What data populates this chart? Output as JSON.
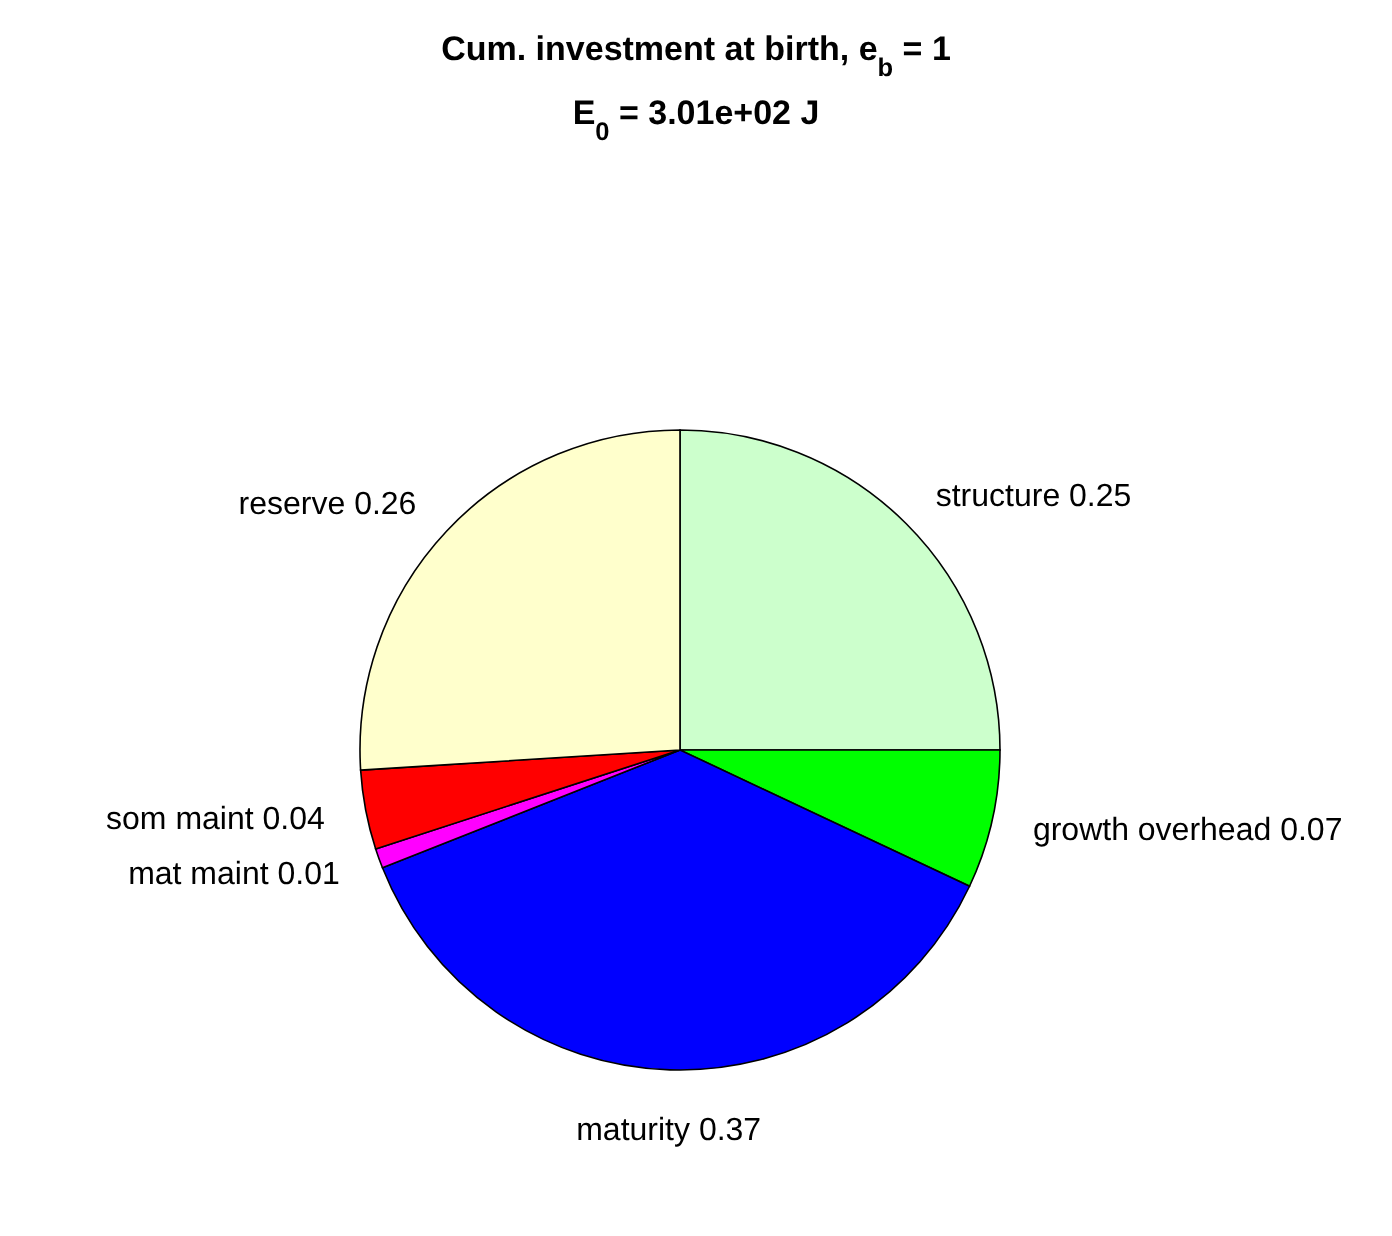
{
  "chart_data": {
    "type": "pie",
    "title": "Cum. investment at birth, e$_{b}$ = 1",
    "subtitle": "E$_{0}$ = 3.01e+02 J",
    "categories": [
      "structure 0.25",
      "growth overhead 0.07",
      "maturity 0.37",
      "mat maint 0.01",
      "som maint 0.04",
      "reserve 0.26"
    ],
    "values": [
      0.25,
      0.07,
      0.37,
      0.01,
      0.04,
      0.26
    ],
    "colors": [
      "#ccffcc",
      "#00ff00",
      "#0000ff",
      "#ff00ff",
      "#ff0000",
      "#ffffcc"
    ]
  }
}
